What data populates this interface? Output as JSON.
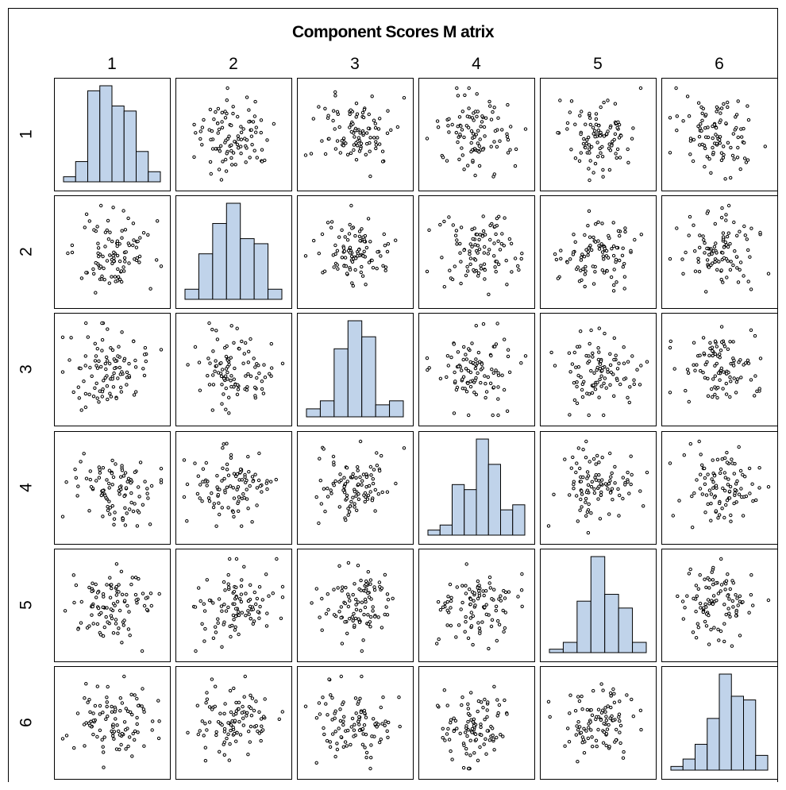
{
  "chart_data": {
    "type": "scatter",
    "title": "Component Scores M atrix",
    "variables": [
      "1",
      "2",
      "3",
      "4",
      "5",
      "6"
    ],
    "diagonal": "histogram",
    "bar_fill": "#c0d3ea",
    "point_style": "open-circle",
    "points_per_panel": 100,
    "histograms": [
      [
        1,
        4,
        18,
        19,
        15,
        14,
        6,
        2
      ],
      [
        2,
        9,
        15,
        19,
        12,
        11,
        2
      ],
      [
        2,
        4,
        17,
        24,
        20,
        3,
        4
      ],
      [
        1,
        2,
        10,
        9,
        19,
        14,
        5,
        6
      ],
      [
        1,
        3,
        15,
        28,
        17,
        13,
        3
      ],
      [
        1,
        3,
        7,
        14,
        26,
        20,
        19,
        4
      ]
    ],
    "grid": false,
    "legend": "none"
  }
}
